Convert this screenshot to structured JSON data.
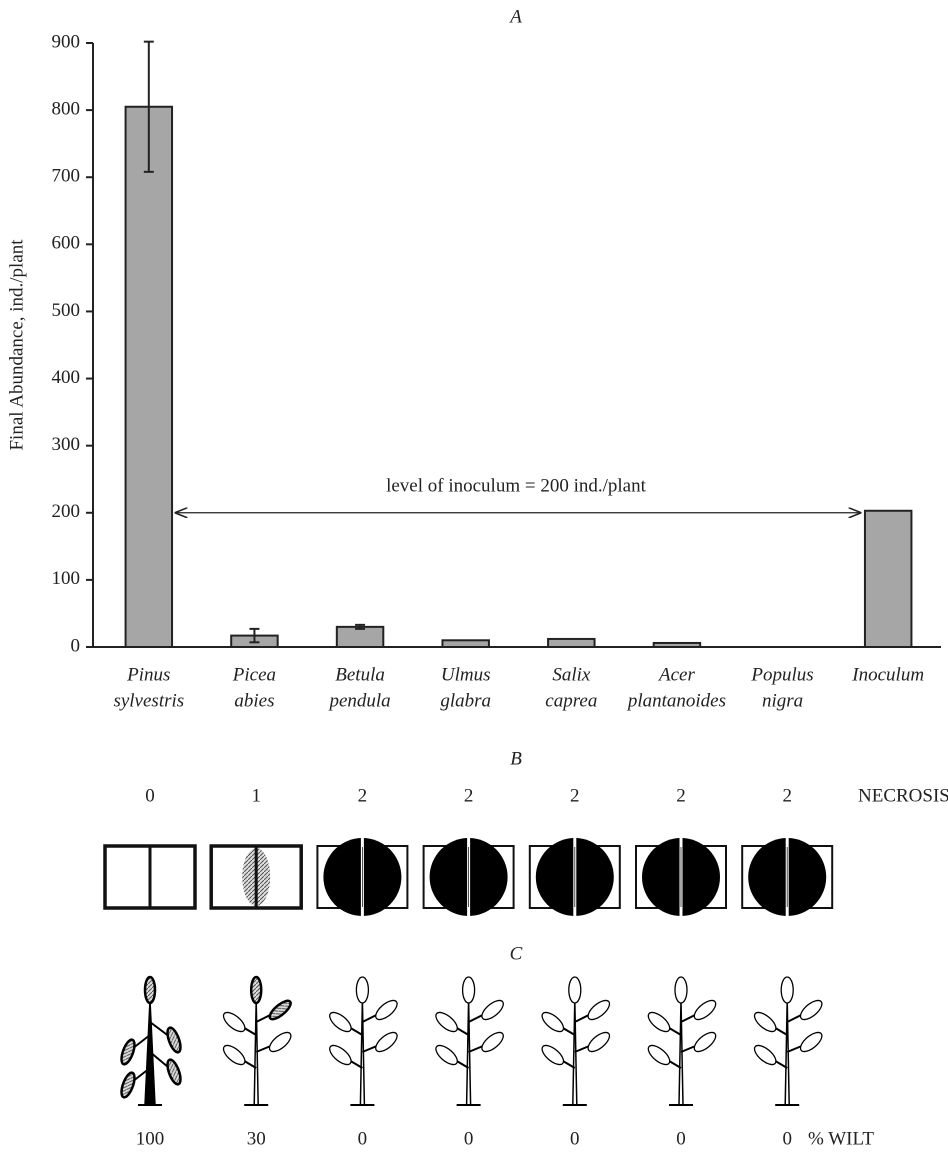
{
  "chart_data": {
    "type": "bar",
    "title": "A",
    "y_label": "Final Abundance, ind./plant",
    "categories": [
      [
        "Pinus",
        "sylvestris"
      ],
      [
        "Picea",
        "abies"
      ],
      [
        "Betula",
        "pendula"
      ],
      [
        "Ulmus",
        "glabra"
      ],
      [
        "Salix",
        "caprea"
      ],
      [
        "Acer",
        "plantanoides"
      ],
      [
        "Populus",
        "nigra"
      ],
      [
        "Inoculum"
      ]
    ],
    "values": [
      805,
      17,
      30,
      10,
      12,
      6,
      0,
      203
    ],
    "errors": [
      97,
      10,
      3,
      null,
      null,
      null,
      null,
      null
    ],
    "color": "#a6a6a6",
    "ylim": [
      0,
      900
    ],
    "yticks": [
      0,
      100,
      200,
      300,
      400,
      500,
      600,
      700,
      800,
      900
    ],
    "annotation": {
      "text": "level of inoculum = 200 ind./plant",
      "y": 200
    }
  },
  "panel_b": {
    "title": "B",
    "label": "NECROSIS",
    "scores": [
      0,
      1,
      2,
      2,
      2,
      2,
      2
    ]
  },
  "panel_c": {
    "title": "C",
    "label": "% WILT",
    "values": [
      100,
      30,
      0,
      0,
      0,
      0,
      0
    ]
  }
}
